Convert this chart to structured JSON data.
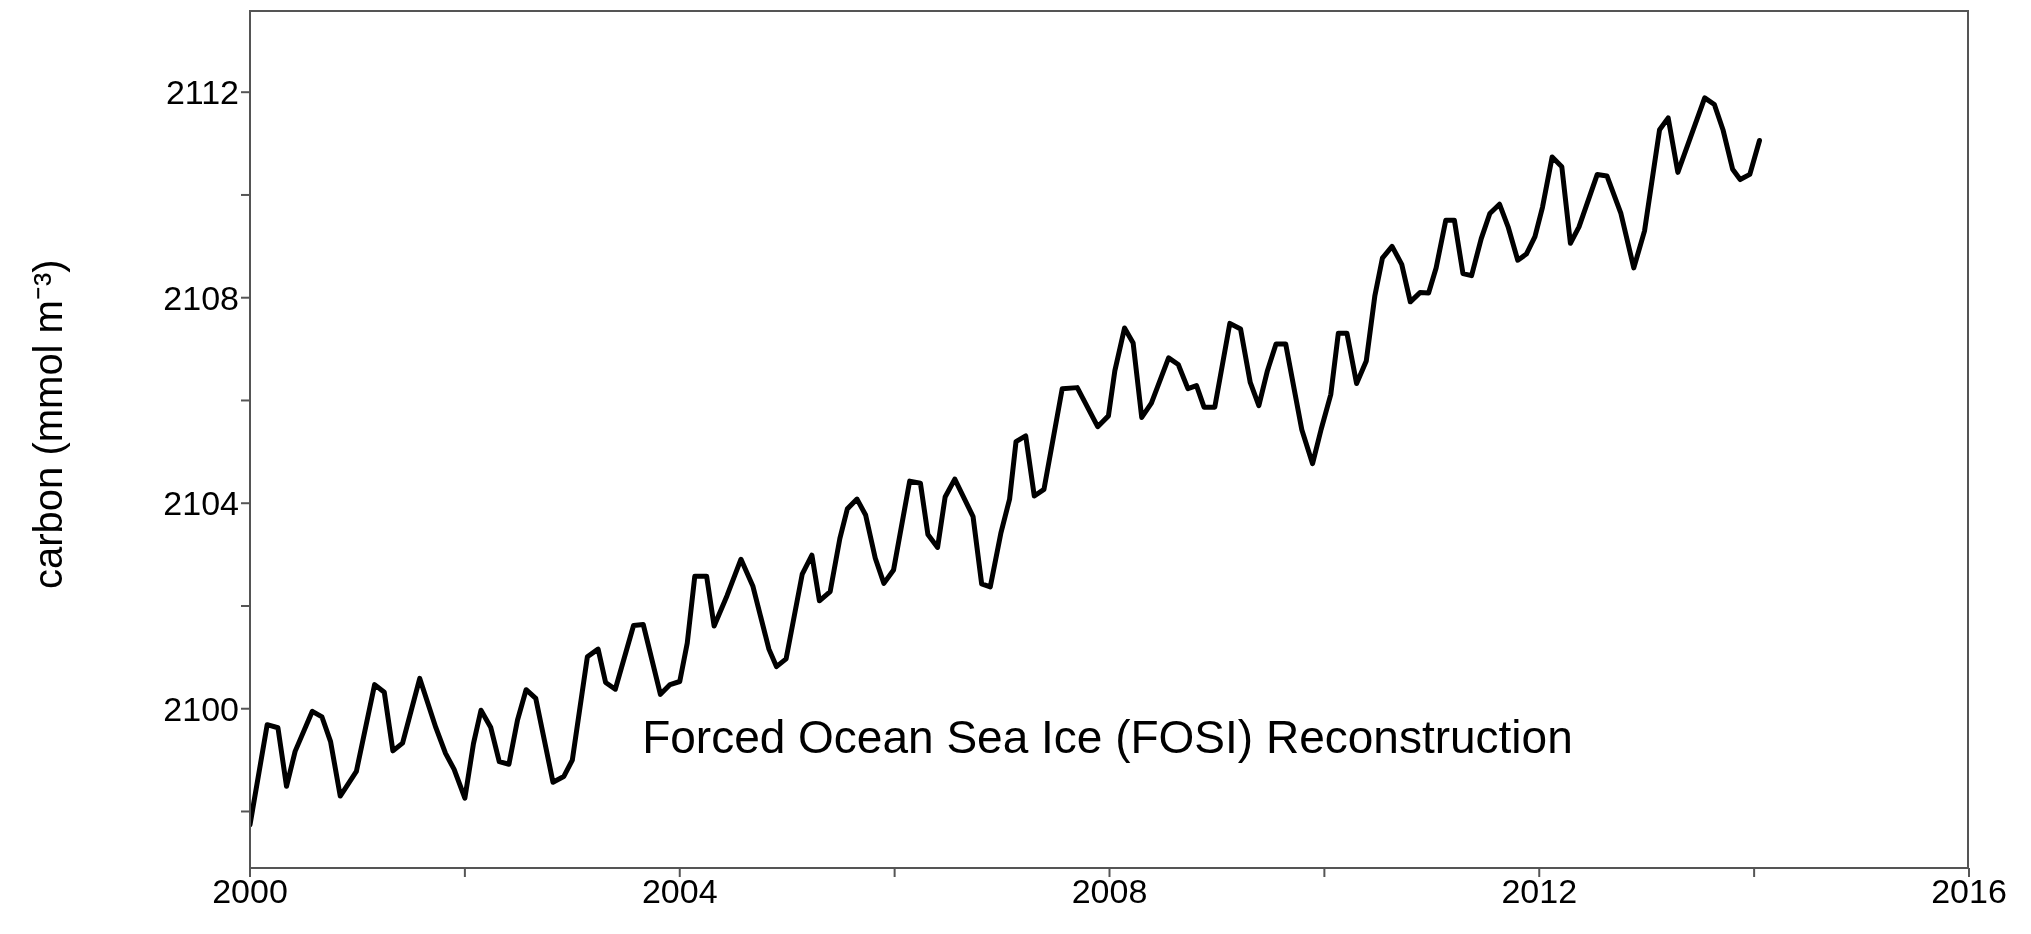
{
  "chart_data": {
    "type": "line",
    "ylabel": "carbon (mmol m⁻³)",
    "annotations": [
      "Forced Ocean Sea Ice (FOSI) Reconstruction"
    ],
    "xlim": [
      2000,
      2016
    ],
    "xticks": [
      2000,
      {
        "value": 2002,
        "label": null
      },
      2004,
      {
        "value": 2006,
        "label": null
      },
      2008,
      {
        "value": 2010,
        "label": null
      },
      2012,
      {
        "value": 2014,
        "label": null
      },
      2016
    ],
    "ylim": [
      2096.9,
      2113.6
    ],
    "yticks": [
      {
        "value": 2098,
        "label": null
      },
      2100,
      {
        "value": 2102,
        "label": null
      },
      2104,
      {
        "value": 2106,
        "label": null
      },
      2108,
      {
        "value": 2110,
        "label": null
      },
      2112
    ],
    "grid": false,
    "legend": false,
    "marker": "none",
    "line_style": "solid",
    "series": [
      {
        "color": "#000000",
        "x": [
          2000.0,
          2000.16,
          2000.26,
          2000.34,
          2000.42,
          2000.58,
          2000.67,
          2000.75,
          2000.84,
          2000.99,
          2001.16,
          2001.25,
          2001.33,
          2001.42,
          2001.58,
          2001.73,
          2001.82,
          2001.9,
          2002.0,
          2002.08,
          2002.15,
          2002.24,
          2002.32,
          2002.41,
          2002.49,
          2002.57,
          2002.66,
          2002.82,
          2002.92,
          2003.0,
          2003.14,
          2003.24,
          2003.31,
          2003.4,
          2003.57,
          2003.66,
          2003.82,
          2003.91,
          2004.0,
          2004.07,
          2004.14,
          2004.25,
          2004.32,
          2004.44,
          2004.57,
          2004.68,
          2004.83,
          2004.9,
          2004.99,
          2005.14,
          2005.23,
          2005.3,
          2005.4,
          2005.49,
          2005.56,
          2005.65,
          2005.73,
          2005.82,
          2005.9,
          2005.99,
          2006.14,
          2006.24,
          2006.31,
          2006.4,
          2006.47,
          2006.56,
          2006.73,
          2006.81,
          2006.89,
          2006.99,
          2007.07,
          2007.13,
          2007.22,
          2007.3,
          2007.39,
          2007.56,
          2007.7,
          2007.89,
          2007.99,
          2008.05,
          2008.14,
          2008.22,
          2008.3,
          2008.39,
          2008.55,
          2008.64,
          2008.73,
          2008.81,
          2008.88,
          2008.98,
          2009.12,
          2009.22,
          2009.31,
          2009.39,
          2009.47,
          2009.55,
          2009.64,
          2009.79,
          2009.89,
          2009.97,
          2010.06,
          2010.13,
          2010.21,
          2010.3,
          2010.39,
          2010.47,
          2010.54,
          2010.63,
          2010.72,
          2010.8,
          2010.89,
          2010.97,
          2011.04,
          2011.13,
          2011.21,
          2011.29,
          2011.37,
          2011.46,
          2011.54,
          2011.63,
          2011.71,
          2011.8,
          2011.88,
          2011.96,
          2012.03,
          2012.12,
          2012.21,
          2012.29,
          2012.37,
          2012.54,
          2012.63,
          2012.76,
          2012.88,
          2012.98,
          2013.12,
          2013.2,
          2013.29,
          2013.54,
          2013.63,
          2013.71,
          2013.8,
          2013.87,
          2013.96,
          2014.05
        ],
        "values": [
          2097.74,
          2099.69,
          2099.63,
          2098.49,
          2099.17,
          2099.95,
          2099.84,
          2099.36,
          2098.3,
          2098.78,
          2100.47,
          2100.32,
          2099.18,
          2099.33,
          2100.59,
          2099.63,
          2099.13,
          2098.82,
          2098.26,
          2099.32,
          2099.97,
          2099.64,
          2098.97,
          2098.92,
          2099.78,
          2100.37,
          2100.2,
          2098.57,
          2098.68,
          2099.0,
          2101.01,
          2101.16,
          2100.51,
          2100.38,
          2101.62,
          2101.64,
          2100.28,
          2100.47,
          2100.53,
          2101.28,
          2102.58,
          2102.58,
          2101.61,
          2102.2,
          2102.91,
          2102.39,
          2101.16,
          2100.82,
          2100.97,
          2102.62,
          2102.99,
          2102.1,
          2102.28,
          2103.31,
          2103.89,
          2104.08,
          2103.77,
          2102.93,
          2102.44,
          2102.7,
          2104.43,
          2104.39,
          2103.39,
          2103.14,
          2104.12,
          2104.47,
          2103.74,
          2102.43,
          2102.37,
          2103.43,
          2104.08,
          2105.2,
          2105.31,
          2104.14,
          2104.27,
          2106.23,
          2106.25,
          2105.49,
          2105.7,
          2106.58,
          2107.41,
          2107.12,
          2105.67,
          2105.95,
          2106.83,
          2106.7,
          2106.23,
          2106.29,
          2105.87,
          2105.87,
          2107.5,
          2107.39,
          2106.35,
          2105.9,
          2106.58,
          2107.1,
          2107.1,
          2105.43,
          2104.77,
          2105.44,
          2106.12,
          2107.31,
          2107.31,
          2106.33,
          2106.77,
          2108.04,
          2108.77,
          2109.0,
          2108.65,
          2107.92,
          2108.1,
          2108.09,
          2108.58,
          2109.51,
          2109.51,
          2108.47,
          2108.43,
          2109.15,
          2109.64,
          2109.82,
          2109.38,
          2108.73,
          2108.85,
          2109.19,
          2109.76,
          2110.74,
          2110.55,
          2109.06,
          2109.38,
          2110.4,
          2110.37,
          2109.64,
          2108.58,
          2109.3,
          2111.27,
          2111.5,
          2110.44,
          2111.89,
          2111.76,
          2111.27,
          2110.5,
          2110.3,
          2110.4,
          2111.06
        ]
      }
    ]
  }
}
